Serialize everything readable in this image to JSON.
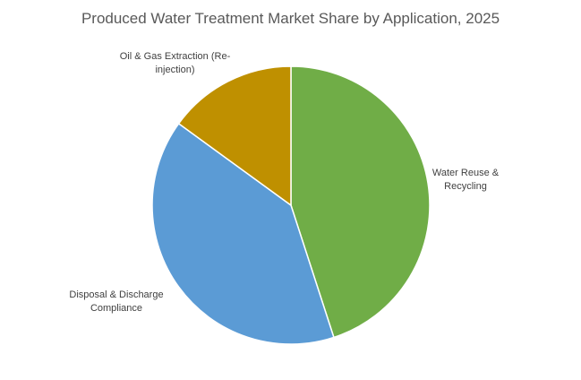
{
  "chart_data": {
    "type": "pie",
    "title": "Produced Water Treatment Market Share by Application, 2025",
    "categories": [
      "Water Reuse & Recycling",
      "Disposal & Discharge Compliance",
      "Oil & Gas Extraction (Re-injection)"
    ],
    "values": [
      45,
      40,
      15
    ],
    "colors": [
      "#70ad47",
      "#5b9bd5",
      "#bf9000"
    ]
  }
}
